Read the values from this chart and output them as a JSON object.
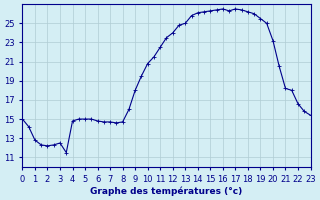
{
  "title": "Graphe des températures (°c)",
  "xlabel": "Graphe des températures (°c)",
  "ylabel": "",
  "background_color": "#d4eef4",
  "grid_color": "#b0ccd4",
  "line_color": "#00008b",
  "marker_color": "#00008b",
  "xlim": [
    0,
    23
  ],
  "ylim": [
    10,
    27
  ],
  "yticks": [
    11,
    13,
    15,
    17,
    19,
    21,
    23,
    25
  ],
  "xticks": [
    0,
    1,
    2,
    3,
    4,
    5,
    6,
    7,
    8,
    9,
    10,
    11,
    12,
    13,
    14,
    15,
    16,
    17,
    18,
    19,
    20,
    21,
    22,
    23
  ],
  "hours": [
    0,
    0.5,
    1,
    1.5,
    2,
    2.5,
    3,
    3.5,
    4,
    4.5,
    5,
    5.5,
    6,
    6.5,
    7,
    7.5,
    8,
    8.5,
    9,
    9.5,
    10,
    10.5,
    11,
    11.5,
    12,
    12.5,
    13,
    13.5,
    14,
    14.5,
    15,
    15.5,
    16,
    16.5,
    17,
    17.5,
    18,
    18.5,
    19,
    19.5,
    20,
    20.5,
    21,
    21.5,
    22,
    22.5,
    23
  ],
  "temps": [
    15.0,
    14.2,
    12.8,
    12.3,
    12.2,
    12.3,
    12.5,
    11.5,
    14.8,
    15.0,
    15.0,
    15.0,
    14.8,
    14.7,
    14.7,
    14.6,
    14.7,
    16.0,
    18.0,
    19.5,
    20.8,
    21.5,
    22.5,
    23.5,
    24.0,
    24.8,
    25.0,
    25.8,
    26.1,
    26.2,
    26.3,
    26.4,
    26.5,
    26.3,
    26.5,
    26.4,
    26.2,
    26.0,
    25.5,
    25.0,
    23.2,
    20.5,
    18.2,
    18.0,
    16.6,
    15.8,
    15.4
  ]
}
